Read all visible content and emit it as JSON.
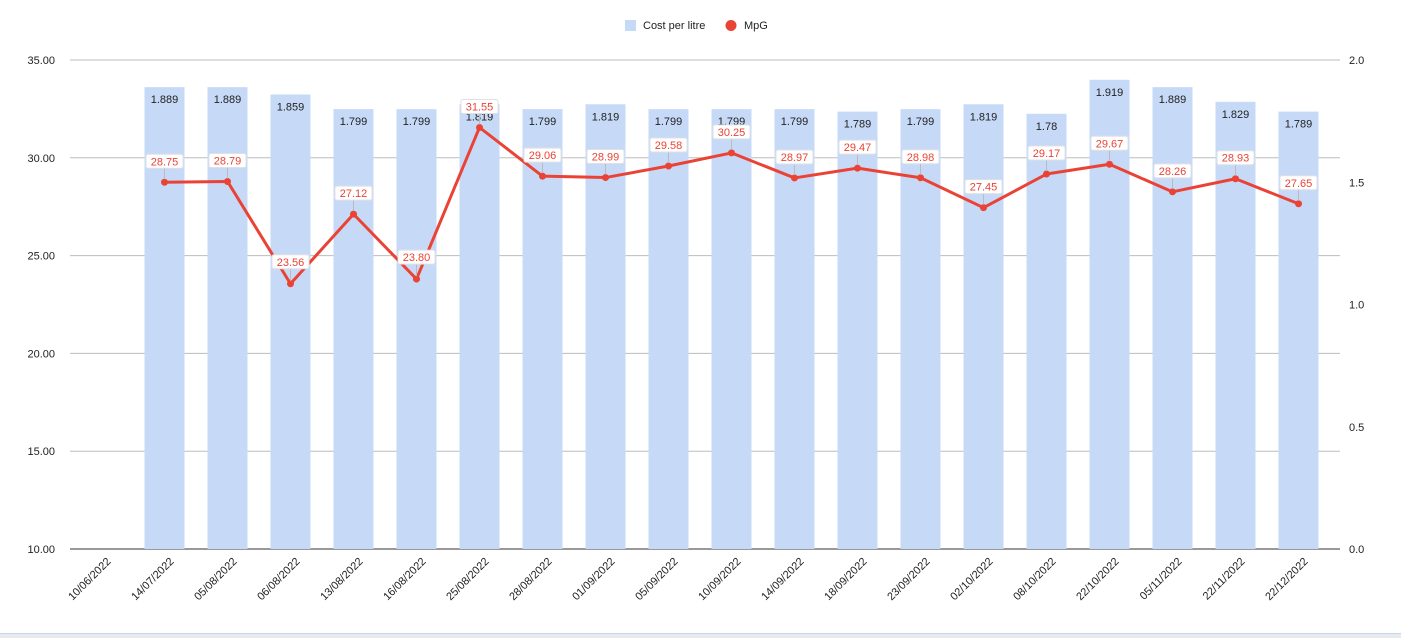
{
  "chart_data": {
    "type": "bar",
    "combo": "bar + line (dual axis)",
    "categories": [
      "10/06/2022",
      "14/07/2022",
      "05/08/2022",
      "06/08/2022",
      "13/08/2022",
      "16/08/2022",
      "25/08/2022",
      "28/08/2022",
      "01/09/2022",
      "05/09/2022",
      "10/09/2022",
      "14/09/2022",
      "18/09/2022",
      "23/09/2022",
      "02/10/2022",
      "08/10/2022",
      "22/10/2022",
      "05/11/2022",
      "22/11/2022",
      "22/12/2022"
    ],
    "series": [
      {
        "name": "Cost per litre",
        "type": "bar",
        "axis": "right",
        "color": "#c6daf8",
        "values": [
          null,
          1.889,
          1.889,
          1.859,
          1.799,
          1.799,
          1.819,
          1.799,
          1.819,
          1.799,
          1.799,
          1.799,
          1.789,
          1.799,
          1.819,
          1.78,
          1.919,
          1.889,
          1.829,
          1.789
        ],
        "labels": [
          "",
          "1.889",
          "1.889",
          "1.859",
          "1.799",
          "1.799",
          "1.819",
          "1.799",
          "1.819",
          "1.799",
          "1.799",
          "1.799",
          "1.789",
          "1.799",
          "1.819",
          "1.78",
          "1.919",
          "1.889",
          "1.829",
          "1.789"
        ]
      },
      {
        "name": "MpG",
        "type": "line",
        "axis": "left",
        "color": "#ea4335",
        "values": [
          null,
          28.75,
          28.79,
          23.56,
          27.12,
          23.8,
          31.55,
          29.06,
          28.99,
          29.58,
          30.25,
          28.97,
          29.47,
          28.98,
          27.45,
          29.17,
          29.67,
          28.26,
          28.93,
          27.65
        ],
        "labels": [
          "",
          "28.75",
          "28.79",
          "23.56",
          "27.12",
          "23.80",
          "31.55",
          "29.06",
          "28.99",
          "29.58",
          "30.25",
          "28.97",
          "29.47",
          "28.98",
          "27.45",
          "29.17",
          "29.67",
          "28.26",
          "28.93",
          "27.65"
        ]
      }
    ],
    "left_axis": {
      "min": 10,
      "max": 35,
      "ticks": [
        "10.00",
        "15.00",
        "20.00",
        "25.00",
        "30.00",
        "35.00"
      ]
    },
    "right_axis": {
      "min": 0,
      "max": 2,
      "ticks": [
        "0.0",
        "0.5",
        "1.0",
        "1.5",
        "2.0"
      ]
    },
    "legend": {
      "position": "top",
      "items": [
        "Cost per litre",
        "MpG"
      ]
    },
    "grid": true
  }
}
